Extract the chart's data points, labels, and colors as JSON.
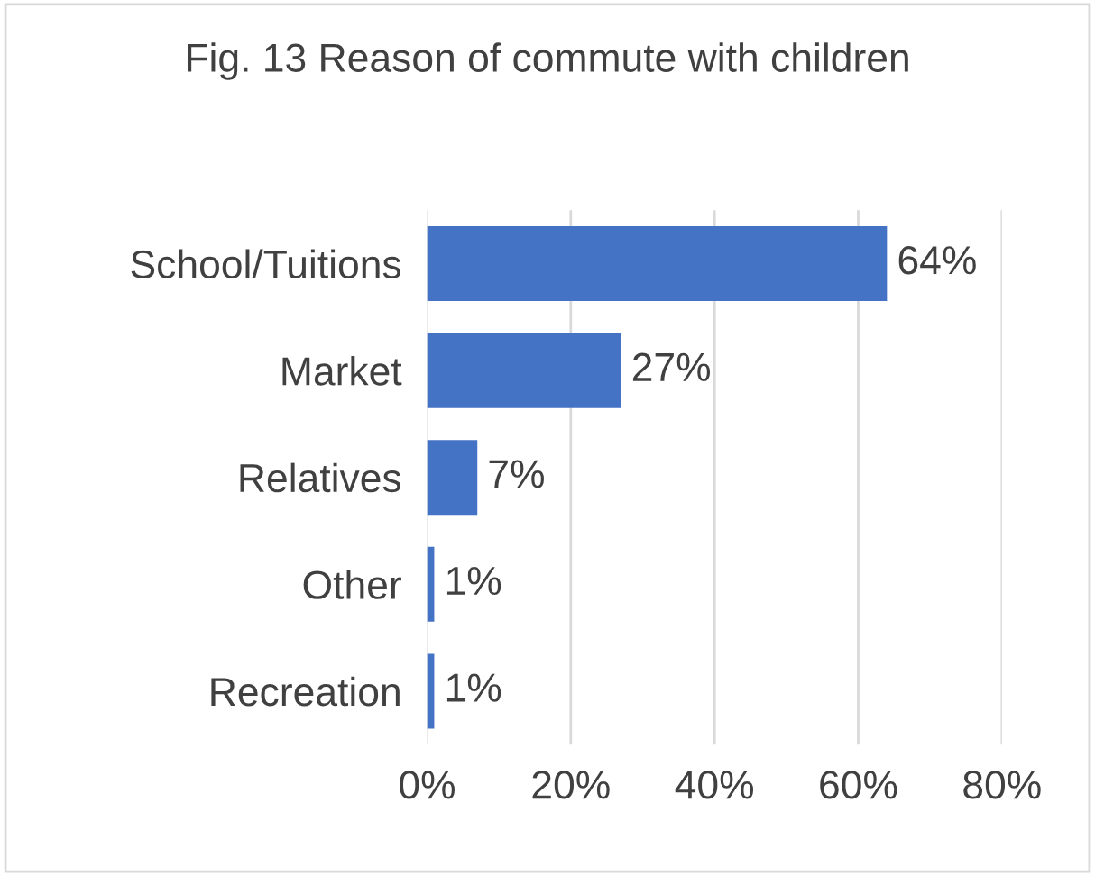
{
  "chart_data": {
    "type": "bar",
    "orientation": "horizontal",
    "title": "Fig. 13 Reason of commute with children",
    "categories": [
      "School/Tuitions",
      "Market",
      "Relatives",
      "Other",
      "Recreation"
    ],
    "values": [
      64,
      27,
      7,
      1,
      1
    ],
    "value_labels": [
      "64%",
      "27%",
      "7%",
      "1%",
      "1%"
    ],
    "color": "#4472c4",
    "xlim": [
      0,
      80
    ],
    "xticks": [
      {
        "value": 0,
        "label": "0%"
      },
      {
        "value": 20,
        "label": "20%"
      },
      {
        "value": 40,
        "label": "40%"
      },
      {
        "value": 60,
        "label": "60%"
      },
      {
        "value": 80,
        "label": "80%"
      }
    ],
    "grid": "x",
    "legend": false
  }
}
